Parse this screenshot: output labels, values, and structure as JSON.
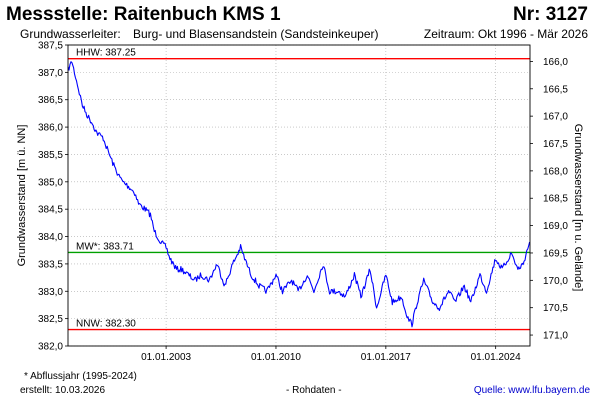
{
  "header": {
    "station": "Messstelle: Raitenbuch KMS 1",
    "number": "Nr: 3127",
    "aquifer_label": "Grundwasserleiter:",
    "aquifer": "Burg- und Blasensandstein (Sandsteinkeuper)",
    "period": "Zeitraum: Okt 1996 - Mär 2026"
  },
  "footer": {
    "footnote": "* Abflussjahr (1995-2024)",
    "created": "erstellt:  10.03.2026",
    "raw": "- Rohdaten -",
    "source": "Quelle: www.lfu.bayern.de"
  },
  "chart_data": {
    "type": "line",
    "ylabel": "Grundwasserstand [m ü. NN]",
    "y2label": "Grundwasserstand [m u. Gelände]",
    "ylim": [
      382.0,
      387.5
    ],
    "y_ticks": [
      "387,5",
      "387,0",
      "386,5",
      "386,0",
      "385,5",
      "385,0",
      "384,5",
      "384,0",
      "383,5",
      "383,0",
      "382,5",
      "382,0"
    ],
    "y2_ticks": [
      "166,0",
      "166,5",
      "167,0",
      "167,5",
      "168,0",
      "168,5",
      "169,0",
      "169,5",
      "170,0",
      "170,5",
      "171,0"
    ],
    "x_ticks": [
      "01.01.2003",
      "01.01.2010",
      "01.01.2017",
      "01.01.2024"
    ],
    "xlim": [
      "1996-10-01",
      "2026-03-10"
    ],
    "reference_lines": [
      {
        "label": "HHW: 387.25",
        "value": 387.25,
        "color": "#ff0000"
      },
      {
        "label": "MW*: 383.71",
        "value": 383.71,
        "color": "#00a000"
      },
      {
        "label": "NNW: 382.30",
        "value": 382.3,
        "color": "#ff0000"
      }
    ],
    "grid": true,
    "line_color": "#0000ff",
    "series": [
      {
        "x": [
          "1996-10-01",
          "1997-01-01",
          "1997-03-01",
          "1997-06-01",
          "1997-09-01",
          "1998-01-01",
          "1998-04-01",
          "1998-08-01",
          "1999-01-01",
          "1999-04-01",
          "1999-09-01",
          "2000-01-01",
          "2000-04-01",
          "2000-09-01",
          "2001-01-01",
          "2001-04-01",
          "2001-09-01",
          "2002-01-01",
          "2002-04-01",
          "2002-09-01",
          "2003-01-01",
          "2003-04-01",
          "2003-09-01",
          "2004-01-01",
          "2004-06-01",
          "2004-11-01",
          "2005-04-01",
          "2005-10-01",
          "2006-04-01",
          "2006-10-01",
          "2007-04-01",
          "2007-10-01",
          "2008-01-01",
          "2008-06-01",
          "2008-12-01",
          "2009-06-01",
          "2010-01-01",
          "2010-06-01",
          "2011-01-01",
          "2011-06-01",
          "2012-01-01",
          "2012-06-01",
          "2013-01-01",
          "2013-06-01",
          "2014-01-01",
          "2014-06-01",
          "2015-01-01",
          "2015-06-01",
          "2016-01-01",
          "2016-06-01",
          "2017-01-01",
          "2017-06-01",
          "2018-01-01",
          "2018-06-01",
          "2018-09-01",
          "2019-01-01",
          "2019-06-01",
          "2020-01-01",
          "2020-06-01",
          "2021-01-01",
          "2021-06-01",
          "2022-01-01",
          "2022-06-01",
          "2023-01-01",
          "2023-06-01",
          "2024-01-01",
          "2024-06-01",
          "2025-01-01",
          "2025-06-01",
          "2025-10-01",
          "2026-03-01"
        ],
        "values": [
          387.05,
          387.2,
          387.0,
          386.7,
          386.4,
          386.2,
          386.1,
          385.9,
          385.8,
          385.6,
          385.3,
          385.1,
          385.0,
          384.9,
          384.8,
          384.6,
          384.5,
          384.4,
          384.1,
          383.9,
          383.8,
          383.6,
          383.4,
          383.4,
          383.3,
          383.2,
          383.3,
          383.2,
          383.5,
          383.1,
          383.5,
          383.8,
          383.6,
          383.3,
          383.1,
          383.0,
          383.3,
          383.0,
          383.2,
          383.0,
          383.3,
          383.0,
          383.5,
          383.0,
          383.0,
          382.9,
          383.3,
          382.9,
          383.4,
          382.7,
          383.3,
          382.8,
          382.9,
          382.5,
          382.4,
          382.8,
          383.2,
          382.8,
          382.7,
          383.0,
          382.8,
          383.1,
          382.8,
          383.3,
          383.0,
          383.6,
          383.4,
          383.7,
          383.4,
          383.5,
          383.9
        ]
      }
    ]
  }
}
